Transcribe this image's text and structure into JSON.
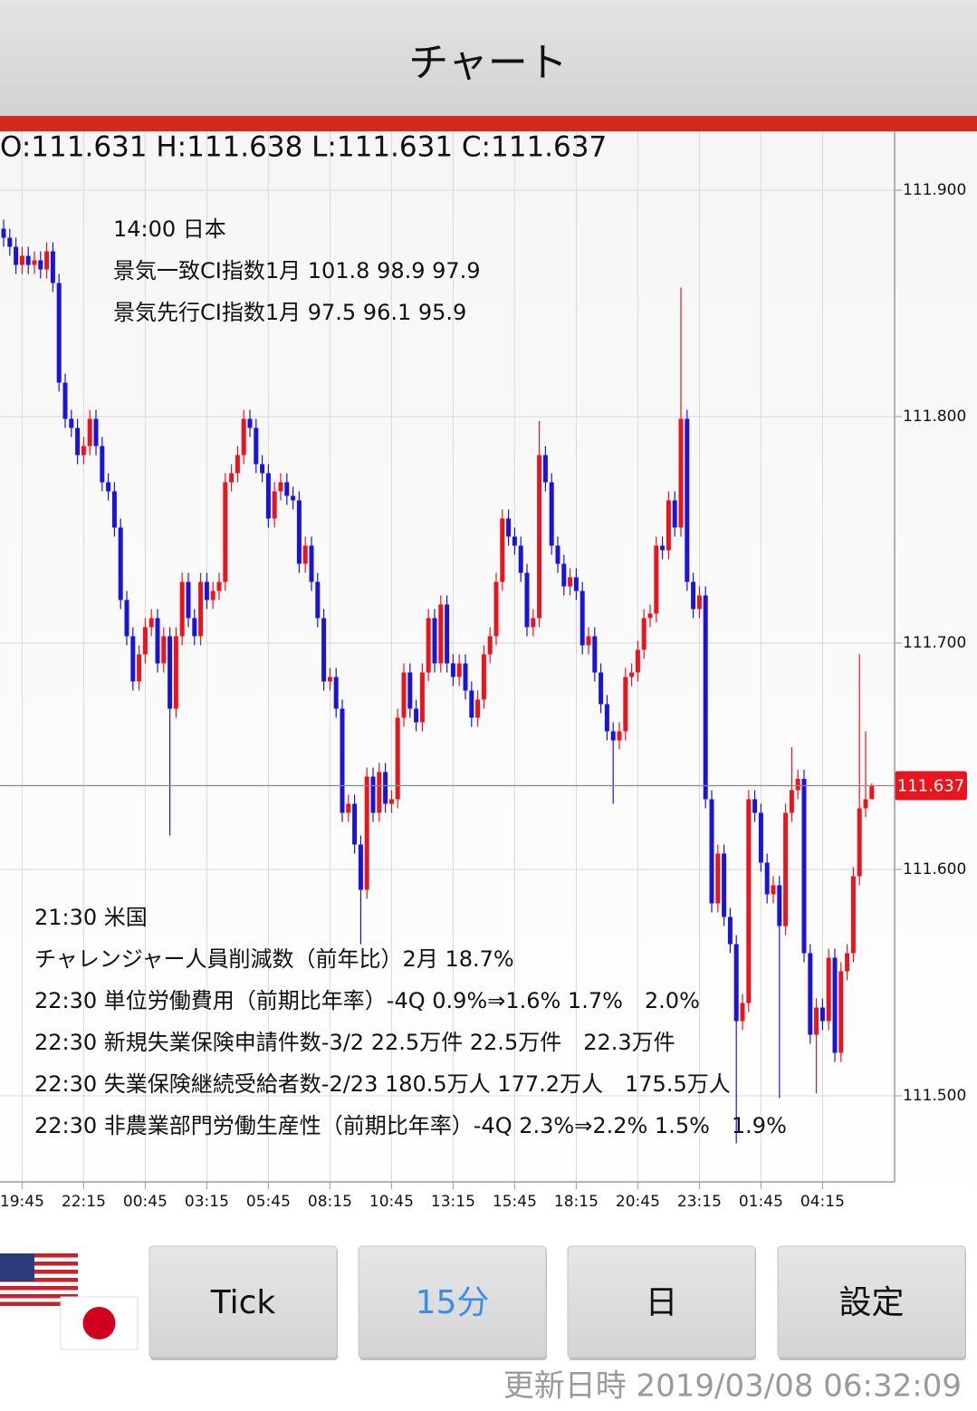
{
  "header": {
    "title": "チャート"
  },
  "chart_data": {
    "type": "candlestick",
    "ohlc_text": "O:111.631 H:111.638 L:111.631 C:111.637",
    "categories": [
      null,
      null,
      null,
      "19:45",
      null,
      null,
      null,
      null,
      null,
      null,
      null,
      null,
      null,
      "22:15",
      null,
      null,
      null,
      null,
      null,
      null,
      null,
      null,
      null,
      "00:45",
      null,
      null,
      null,
      null,
      null,
      null,
      null,
      null,
      null,
      "03:15",
      null,
      null,
      null,
      null,
      null,
      null,
      null,
      null,
      null,
      "05:45",
      null,
      null,
      null,
      null,
      null,
      null,
      null,
      null,
      null,
      "08:15",
      null,
      null,
      null,
      null,
      null,
      null,
      null,
      null,
      null,
      "10:45",
      null,
      null,
      null,
      null,
      null,
      null,
      null,
      null,
      null,
      "13:15",
      null,
      null,
      null,
      null,
      null,
      null,
      null,
      null,
      null,
      "15:45",
      null,
      null,
      null,
      null,
      null,
      null,
      null,
      null,
      null,
      "18:15",
      null,
      null,
      null,
      null,
      null,
      null,
      null,
      null,
      null,
      "20:45",
      null,
      null,
      null,
      null,
      null,
      null,
      null,
      null,
      null,
      "23:15",
      null,
      null,
      null,
      null,
      null,
      null,
      null,
      null,
      null,
      "01:45",
      null,
      null,
      null,
      null,
      null,
      null,
      null,
      null,
      null,
      "04:15",
      null,
      null,
      null,
      null,
      null,
      null,
      null,
      null
    ],
    "open": [
      111.883,
      111.879,
      111.875,
      111.867,
      111.871,
      111.867,
      111.869,
      111.865,
      111.873,
      111.859,
      111.815,
      111.799,
      111.795,
      111.783,
      111.787,
      111.799,
      111.787,
      111.771,
      111.767,
      111.751,
      111.719,
      111.703,
      111.683,
      111.695,
      111.707,
      111.711,
      111.691,
      111.703,
      111.671,
      111.703,
      111.727,
      111.711,
      111.703,
      111.727,
      111.719,
      111.723,
      111.727,
      111.771,
      111.775,
      111.783,
      111.799,
      111.795,
      111.779,
      111.775,
      111.755,
      111.767,
      111.771,
      111.765,
      111.763,
      111.735,
      111.743,
      111.727,
      111.711,
      111.683,
      111.685,
      111.671,
      111.625,
      111.629,
      111.611,
      111.591,
      111.641,
      111.625,
      111.643,
      111.629,
      111.631,
      111.667,
      111.687,
      111.671,
      111.665,
      111.687,
      111.711,
      111.691,
      111.717,
      111.691,
      111.685,
      111.691,
      111.679,
      111.667,
      111.675,
      111.695,
      111.703,
      111.727,
      111.755,
      111.747,
      111.743,
      111.731,
      111.707,
      111.711,
      111.783,
      111.771,
      111.743,
      111.735,
      111.725,
      111.729,
      111.723,
      111.699,
      111.703,
      111.687,
      111.673,
      111.661,
      111.657,
      111.661,
      111.685,
      111.687,
      111.697,
      111.711,
      111.713,
      111.743,
      111.741,
      111.763,
      111.751,
      111.799,
      111.727,
      111.715,
      111.721,
      111.631,
      111.585,
      111.607,
      111.579,
      111.567,
      111.533,
      111.541,
      111.631,
      111.625,
      111.603,
      111.589,
      111.593,
      111.575,
      111.625,
      111.635,
      111.64,
      111.563,
      111.527,
      111.539,
      111.533,
      111.561,
      111.519,
      111.555,
      111.563,
      111.597,
      111.627,
      111.631
    ],
    "high": [
      111.887,
      111.883,
      111.879,
      111.875,
      111.875,
      111.873,
      111.873,
      111.877,
      111.877,
      111.863,
      111.819,
      111.803,
      111.799,
      111.791,
      111.803,
      111.803,
      111.791,
      111.775,
      111.771,
      111.755,
      111.723,
      111.707,
      111.699,
      111.711,
      111.715,
      111.715,
      111.707,
      111.707,
      111.707,
      111.731,
      111.731,
      111.715,
      111.731,
      111.731,
      111.727,
      111.731,
      111.775,
      111.779,
      111.787,
      111.803,
      111.803,
      111.799,
      111.783,
      111.779,
      111.771,
      111.775,
      111.775,
      111.769,
      111.767,
      111.747,
      111.747,
      111.731,
      111.715,
      111.689,
      111.689,
      111.675,
      111.633,
      111.633,
      111.615,
      111.645,
      111.645,
      111.647,
      111.647,
      111.635,
      111.671,
      111.691,
      111.691,
      111.675,
      111.691,
      111.715,
      111.715,
      111.721,
      111.721,
      111.695,
      111.695,
      111.695,
      111.683,
      111.679,
      111.699,
      111.707,
      111.731,
      111.759,
      111.759,
      111.751,
      111.747,
      111.735,
      111.715,
      111.798,
      111.787,
      111.775,
      111.747,
      111.739,
      111.733,
      111.733,
      111.727,
      111.707,
      111.707,
      111.691,
      111.677,
      111.665,
      111.665,
      111.689,
      111.691,
      111.701,
      111.715,
      111.717,
      111.747,
      111.747,
      111.767,
      111.767,
      111.857,
      111.803,
      111.731,
      111.725,
      111.725,
      111.635,
      111.611,
      111.611,
      111.583,
      111.571,
      111.545,
      111.635,
      111.635,
      111.629,
      111.607,
      111.597,
      111.597,
      111.629,
      111.654,
      111.644,
      111.644,
      111.567,
      111.543,
      111.543,
      111.565,
      111.565,
      111.559,
      111.567,
      111.601,
      111.695,
      111.661,
      111.638
    ],
    "low": [
      111.875,
      111.871,
      111.863,
      111.863,
      111.863,
      111.863,
      111.861,
      111.861,
      111.855,
      111.811,
      111.795,
      111.791,
      111.779,
      111.779,
      111.783,
      111.783,
      111.767,
      111.763,
      111.747,
      111.715,
      111.699,
      111.679,
      111.679,
      111.691,
      111.703,
      111.687,
      111.687,
      111.615,
      111.667,
      111.699,
      111.707,
      111.699,
      111.699,
      111.715,
      111.715,
      111.719,
      111.723,
      111.767,
      111.771,
      111.779,
      111.791,
      111.775,
      111.771,
      111.751,
      111.751,
      111.763,
      111.761,
      111.759,
      111.731,
      111.731,
      111.723,
      111.707,
      111.679,
      111.679,
      111.667,
      111.621,
      111.621,
      111.607,
      111.567,
      111.587,
      111.621,
      111.621,
      111.625,
      111.625,
      111.627,
      111.663,
      111.667,
      111.661,
      111.661,
      111.683,
      111.687,
      111.687,
      111.687,
      111.681,
      111.681,
      111.675,
      111.663,
      111.663,
      111.671,
      111.691,
      111.699,
      111.723,
      111.743,
      111.739,
      111.727,
      111.703,
      111.703,
      111.707,
      111.767,
      111.739,
      111.731,
      111.721,
      111.721,
      111.719,
      111.695,
      111.695,
      111.683,
      111.669,
      111.657,
      111.629,
      111.653,
      111.657,
      111.681,
      111.683,
      111.693,
      111.707,
      111.709,
      111.737,
      111.737,
      111.747,
      111.747,
      111.723,
      111.711,
      111.711,
      111.627,
      111.581,
      111.581,
      111.575,
      111.563,
      111.479,
      111.529,
      111.537,
      111.621,
      111.599,
      111.585,
      111.585,
      111.499,
      111.571,
      111.621,
      111.631,
      111.559,
      111.523,
      111.501,
      111.529,
      111.529,
      111.515,
      111.515,
      111.551,
      111.559,
      111.593,
      111.623,
      111.631
    ],
    "close": [
      111.879,
      111.875,
      111.867,
      111.871,
      111.867,
      111.869,
      111.865,
      111.873,
      111.859,
      111.815,
      111.799,
      111.795,
      111.783,
      111.787,
      111.799,
      111.787,
      111.771,
      111.767,
      111.751,
      111.719,
      111.703,
      111.683,
      111.695,
      111.707,
      111.711,
      111.691,
      111.703,
      111.671,
      111.703,
      111.727,
      111.711,
      111.703,
      111.727,
      111.719,
      111.723,
      111.727,
      111.771,
      111.775,
      111.783,
      111.799,
      111.795,
      111.779,
      111.775,
      111.755,
      111.767,
      111.771,
      111.765,
      111.763,
      111.735,
      111.743,
      111.727,
      111.711,
      111.683,
      111.685,
      111.671,
      111.625,
      111.629,
      111.611,
      111.591,
      111.641,
      111.625,
      111.643,
      111.629,
      111.631,
      111.667,
      111.687,
      111.671,
      111.665,
      111.687,
      111.711,
      111.691,
      111.717,
      111.691,
      111.685,
      111.691,
      111.679,
      111.667,
      111.675,
      111.695,
      111.703,
      111.727,
      111.755,
      111.747,
      111.743,
      111.731,
      111.707,
      111.711,
      111.783,
      111.771,
      111.743,
      111.735,
      111.725,
      111.729,
      111.723,
      111.699,
      111.703,
      111.687,
      111.673,
      111.661,
      111.657,
      111.661,
      111.685,
      111.687,
      111.697,
      111.711,
      111.713,
      111.743,
      111.741,
      111.763,
      111.751,
      111.799,
      111.727,
      111.715,
      111.721,
      111.631,
      111.585,
      111.607,
      111.579,
      111.567,
      111.533,
      111.541,
      111.631,
      111.625,
      111.603,
      111.589,
      111.593,
      111.575,
      111.625,
      111.635,
      111.64,
      111.563,
      111.527,
      111.539,
      111.533,
      111.561,
      111.519,
      111.555,
      111.563,
      111.597,
      111.627,
      111.631,
      111.637
    ],
    "up_color": "#e8141e",
    "down_color": "#1a14d6",
    "last_price_color": "#e8141e",
    "ylim": [
      111.462,
      111.926
    ],
    "yticks": [
      {
        "value": 111.5,
        "label": "111.500"
      },
      {
        "value": 111.6,
        "label": "111.600"
      },
      {
        "value": 111.7,
        "label": "111.700"
      },
      {
        "value": 111.8,
        "label": "111.800"
      },
      {
        "value": 111.9,
        "label": "111.900"
      }
    ],
    "grid": true,
    "annotations": [
      [
        "14:00 日本",
        "景気一致CI指数1月 101.8 98.9 97.9",
        "景気先行CI指数1月 97.5 96.1 95.9"
      ],
      [
        "21:30 米国",
        "チャレンジャー人員削減数（前年比）2月 18.7%",
        "22:30 単位労働費用（前期比年率）-4Q 0.9%⇒1.6% 1.7%　2.0%",
        "22:30 新規失業保険申請件数-3/2 22.5万件 22.5万件　22.3万件",
        "22:30 失業保険継続受給者数-2/23 180.5万人 177.2万人　175.5万人",
        "22:30 非農業部門労働生産性（前期比年率）-4Q 2.3%⇒2.2% 1.5%　1.9%"
      ]
    ]
  },
  "buttons": [
    "Tick",
    "15分",
    "日",
    "設定"
  ],
  "footer": {
    "updated": "更新日時 2019/03/08 06:32:09"
  }
}
